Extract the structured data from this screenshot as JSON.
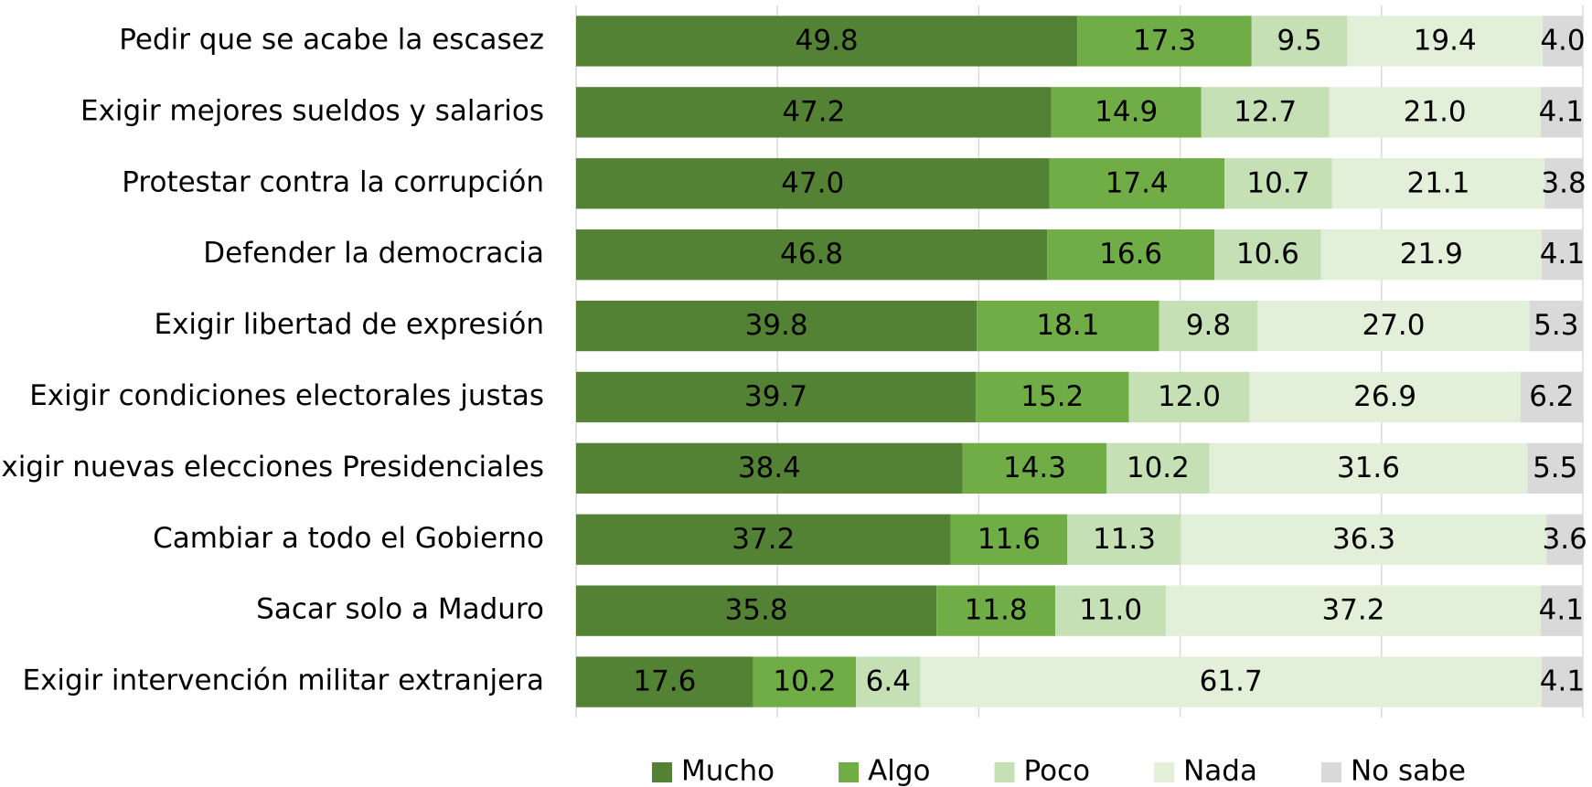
{
  "chart_data": {
    "type": "stacked-bar-horizontal",
    "categories": [
      "Pedir que se acabe la escasez",
      "Exigir mejores sueldos y salarios",
      "Protestar contra la corrupción",
      "Defender la democracia",
      "Exigir libertad de expresión",
      "Exigir condiciones electorales justas",
      "Exigir nuevas elecciones Presidenciales",
      "Cambiar a todo el Gobierno",
      "Sacar solo a Maduro",
      "Exigir intervención militar extranjera"
    ],
    "series": [
      {
        "name": "Mucho",
        "color": "#548235",
        "values": [
          49.8,
          47.2,
          47.0,
          46.8,
          39.8,
          39.7,
          38.4,
          37.2,
          35.8,
          17.6
        ],
        "value_labels": [
          "49.8",
          "47.2",
          "47.0",
          "46.8",
          "39.8",
          "39.7",
          "38.4",
          "37.2",
          "35.8",
          "17.6"
        ]
      },
      {
        "name": "Algo",
        "color": "#70ad47",
        "values": [
          17.3,
          14.9,
          17.4,
          16.6,
          18.1,
          15.2,
          14.3,
          11.6,
          11.8,
          10.2
        ],
        "value_labels": [
          "17.3",
          "14.9",
          "17.4",
          "16.6",
          "18.1",
          "15.2",
          "14.3",
          "11.6",
          "11.8",
          "10.2"
        ]
      },
      {
        "name": "Poco",
        "color": "#c5e0b4",
        "values": [
          9.5,
          12.7,
          10.7,
          10.6,
          9.8,
          12.0,
          10.2,
          11.3,
          11.0,
          6.4
        ],
        "value_labels": [
          "9.5",
          "12.7",
          "10.7",
          "10.6",
          "9.8",
          "12.0",
          "10.2",
          "11.3",
          "11.0",
          "6.4"
        ]
      },
      {
        "name": "Nada",
        "color": "#e2f0d9",
        "values": [
          19.4,
          21.0,
          21.1,
          21.9,
          27.0,
          26.9,
          31.6,
          36.3,
          37.2,
          61.7
        ],
        "value_labels": [
          "19.4",
          "21.0",
          "21.1",
          "21.9",
          "27.0",
          "26.9",
          "31.6",
          "36.3",
          "37.2",
          "61.7"
        ]
      },
      {
        "name": "No sabe",
        "color": "#d9d9d9",
        "values": [
          4.0,
          4.1,
          3.8,
          4.1,
          5.3,
          6.2,
          5.5,
          3.6,
          4.1,
          4.1
        ],
        "value_labels": [
          "4.0",
          "4.1",
          "3.8",
          "4.1",
          "5.3",
          "6.2",
          "5.5",
          "3.6",
          "4.1",
          "4.1"
        ]
      }
    ],
    "xlim": [
      0,
      100
    ],
    "xticks": [
      0,
      20,
      40,
      60,
      80,
      100
    ],
    "grid": true
  }
}
